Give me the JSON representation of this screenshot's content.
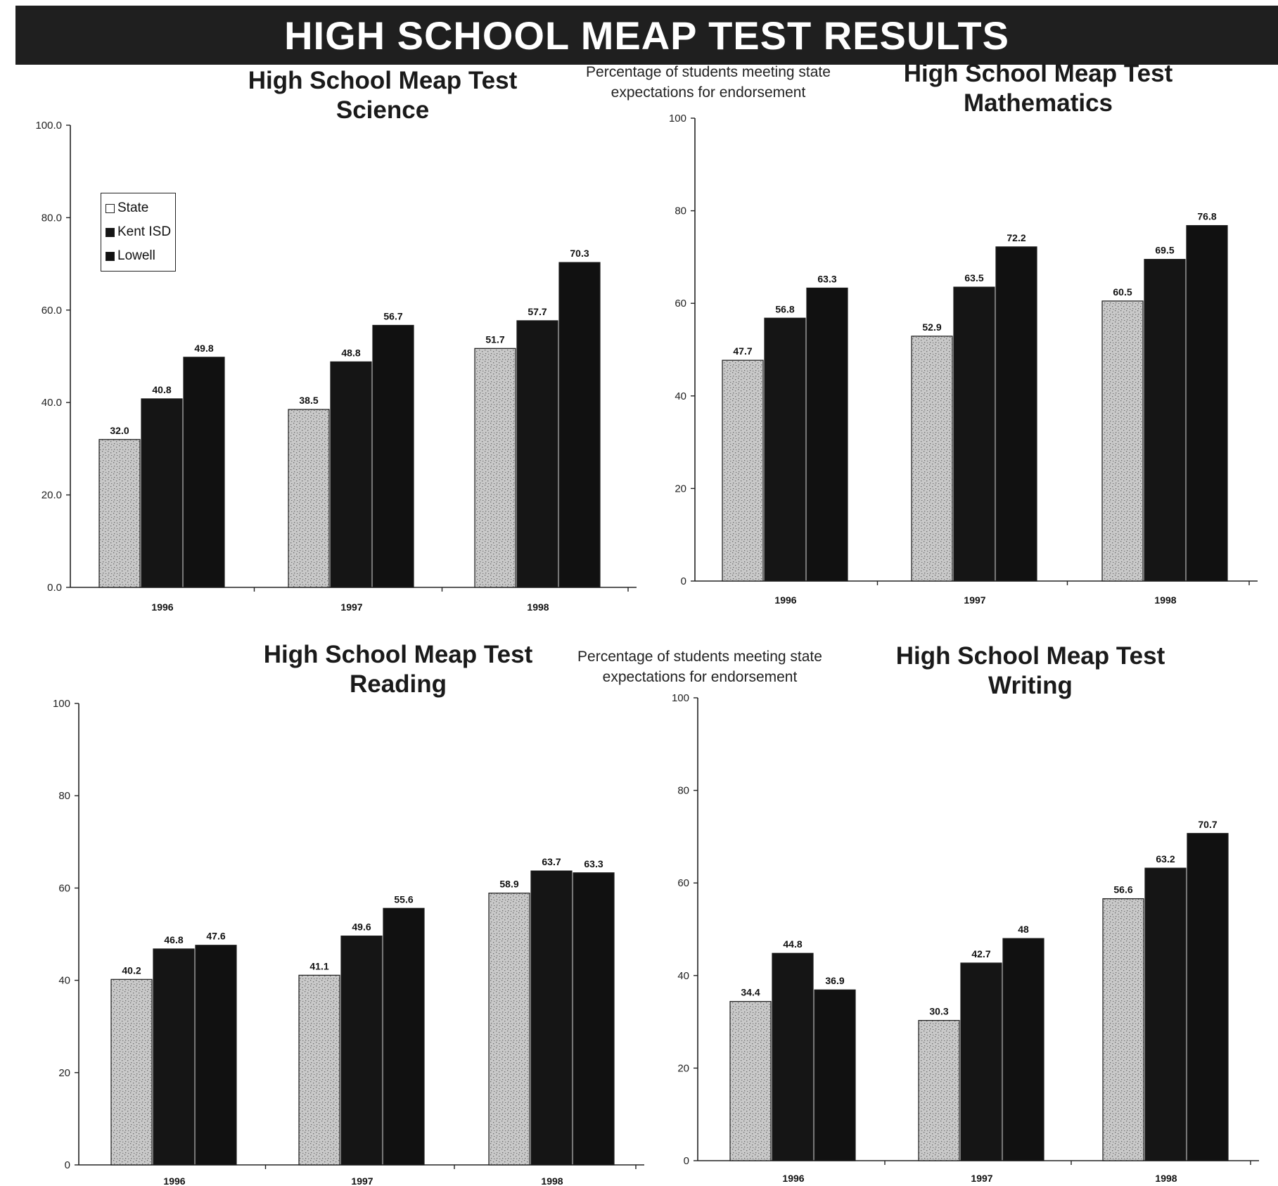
{
  "page": {
    "banner": "HIGH SCHOOL MEAP TEST RESULTS",
    "caption_top": "Percentage of students meeting state expectations for endorsement",
    "caption_bottom": "Percentage of students meeting state expectations for endorsement"
  },
  "colors": {
    "state": "#c9c9c9",
    "kent_isd": "#151515",
    "lowell": "#111111"
  },
  "chart_data": [
    {
      "type": "bar",
      "title": "High School Meap Test Science",
      "title_lines": [
        "High School Meap Test",
        "Science"
      ],
      "categories": [
        "1996",
        "1997",
        "1998"
      ],
      "series": [
        {
          "name": "State",
          "values": [
            32.0,
            38.5,
            51.7
          ]
        },
        {
          "name": "Kent ISD",
          "values": [
            40.8,
            48.8,
            57.7
          ]
        },
        {
          "name": "Lowell",
          "values": [
            49.8,
            56.7,
            70.3
          ]
        }
      ],
      "value_labels": [
        [
          "32.0",
          "38.5",
          "51.7"
        ],
        [
          "40.8",
          "48.8",
          "57.7"
        ],
        [
          "49.8",
          "56.7",
          "70.3"
        ]
      ],
      "ylim": [
        0,
        100
      ],
      "yticks": [
        "0.0",
        "20.0",
        "40.0",
        "60.0",
        "80.0",
        "100.0"
      ],
      "legend": {
        "position": "top-left",
        "entries": [
          "State",
          "Kent ISD",
          "Lowell"
        ]
      },
      "grid": false
    },
    {
      "type": "bar",
      "title": "High School Meap Test Mathematics",
      "title_lines": [
        "High School Meap Test",
        "Mathematics"
      ],
      "categories": [
        "1996",
        "1997",
        "1998"
      ],
      "series": [
        {
          "name": "State",
          "values": [
            47.7,
            52.9,
            60.5
          ]
        },
        {
          "name": "Kent ISD",
          "values": [
            56.8,
            63.5,
            69.5
          ]
        },
        {
          "name": "Lowell",
          "values": [
            63.3,
            72.2,
            76.8
          ]
        }
      ],
      "value_labels": [
        [
          "47.7",
          "52.9",
          "60.5"
        ],
        [
          "56.8",
          "63.5",
          "69.5"
        ],
        [
          "63.3",
          "72.2",
          "76.8"
        ]
      ],
      "ylim": [
        0,
        100
      ],
      "yticks": [
        "0",
        "20",
        "40",
        "60",
        "80",
        "100"
      ],
      "grid": false
    },
    {
      "type": "bar",
      "title": "High School Meap Test Reading",
      "title_lines": [
        "High School Meap Test",
        "Reading"
      ],
      "categories": [
        "1996",
        "1997",
        "1998"
      ],
      "series": [
        {
          "name": "State",
          "values": [
            40.2,
            41.1,
            58.9
          ]
        },
        {
          "name": "Kent ISD",
          "values": [
            46.8,
            49.6,
            63.7
          ]
        },
        {
          "name": "Lowell",
          "values": [
            47.6,
            55.6,
            63.3
          ]
        }
      ],
      "value_labels": [
        [
          "40.2",
          "41.1",
          "58.9"
        ],
        [
          "46.8",
          "49.6",
          "63.7"
        ],
        [
          "47.6",
          "55.6",
          "63.3"
        ]
      ],
      "ylim": [
        0,
        100
      ],
      "yticks": [
        "0",
        "20",
        "40",
        "60",
        "80",
        "100"
      ],
      "grid": false
    },
    {
      "type": "bar",
      "title": "High School Meap Test Writing",
      "title_lines": [
        "High School Meap Test",
        "Writing"
      ],
      "categories": [
        "1996",
        "1997",
        "1998"
      ],
      "series": [
        {
          "name": "State",
          "values": [
            34.4,
            30.3,
            56.6
          ]
        },
        {
          "name": "Kent ISD",
          "values": [
            44.8,
            42.7,
            63.2
          ]
        },
        {
          "name": "Lowell",
          "values": [
            36.9,
            48,
            70.7
          ]
        }
      ],
      "value_labels": [
        [
          "34.4",
          "30.3",
          "56.6"
        ],
        [
          "44.8",
          "42.7",
          "63.2"
        ],
        [
          "36.9",
          "48",
          "70.7"
        ]
      ],
      "ylim": [
        0,
        100
      ],
      "yticks": [
        "0",
        "20",
        "40",
        "60",
        "80",
        "100"
      ],
      "grid": false
    }
  ]
}
